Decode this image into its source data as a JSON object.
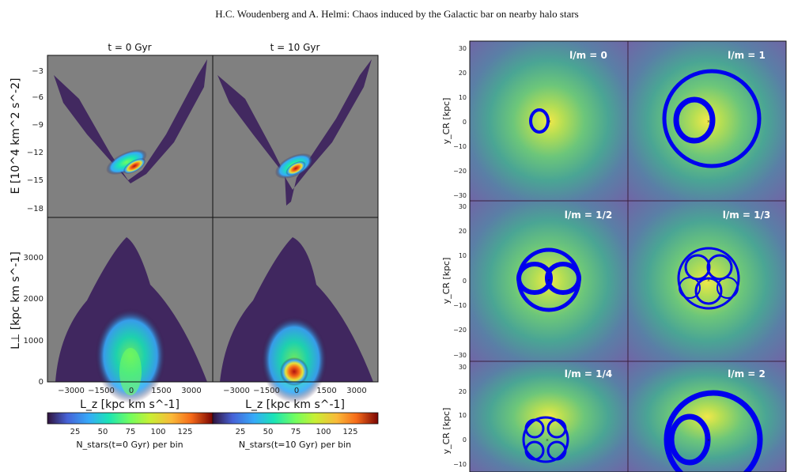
{
  "header": "H.C. Woudenberg and A. Helmi: Chaos induced by the Galactic bar on nearby halo stars",
  "colors": {
    "panel_bg": "#808080",
    "orbit": "#0000ee",
    "hist_bg": "#3b1f5c"
  },
  "chart_data": [
    {
      "type": "heatmap",
      "columns": [
        {
          "title": "t = 0 Gyr",
          "colorbar": {
            "label": "N_stars(t=0 Gyr) per bin",
            "ticks": [
              "25",
              "50",
              "75",
              "100",
              "125"
            ],
            "range": [
              0,
              150
            ]
          }
        },
        {
          "title": "t = 10 Gyr",
          "colorbar": {
            "label": "N_stars(t=10 Gyr) per bin",
            "ticks": [
              "25",
              "50",
              "75",
              "100",
              "125"
            ],
            "range": [
              0,
              150
            ]
          }
        }
      ],
      "xlabel": "L_z [kpc km s^-1]",
      "xticks": [
        "−3000",
        "−1500",
        "0",
        "1500",
        "3000"
      ],
      "xlim": [
        -4000,
        4000
      ],
      "top_row": {
        "ylabel": "E [10^4 km^2 s^-2]",
        "yticks": [
          "−3",
          "−6",
          "−9",
          "−12",
          "−15",
          "−18"
        ],
        "ylim": [
          -19,
          -1
        ]
      },
      "bottom_row": {
        "ylabel": "L⊥ [kpc km s^-1]",
        "yticks": [
          "0",
          "1000",
          "2000",
          "3000"
        ],
        "ylim": [
          0,
          3800
        ]
      }
    },
    {
      "type": "scatter",
      "ylabel": "y_CR [kpc]",
      "yticks": [
        "30",
        "20",
        "10",
        "0",
        "−10",
        "−20",
        "−30"
      ],
      "ylim": [
        -32,
        32
      ],
      "panels": [
        {
          "label": "l/m  = 0"
        },
        {
          "label": "l/m  = 1"
        },
        {
          "label": "l/m  = 1/2"
        },
        {
          "label": "l/m  = 1/3"
        },
        {
          "label": "l/m  = 1/4"
        },
        {
          "label": "l/m  = 2"
        }
      ]
    }
  ]
}
